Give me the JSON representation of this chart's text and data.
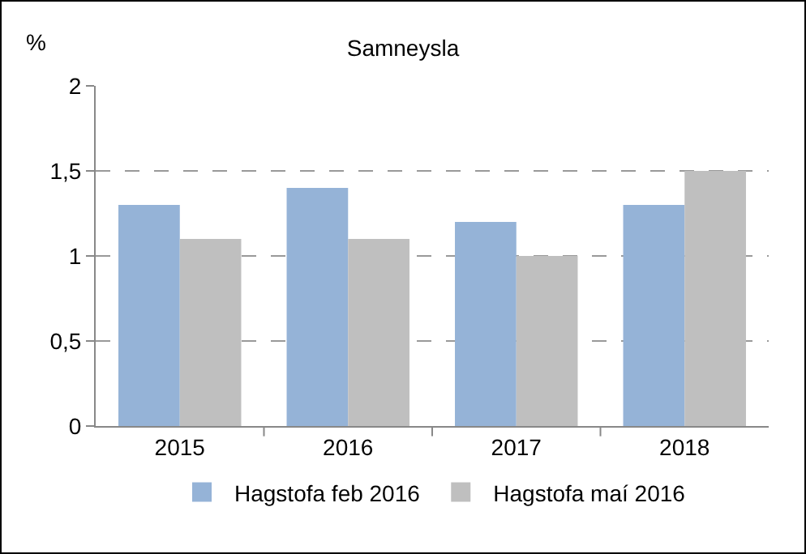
{
  "chart_data": {
    "type": "bar",
    "title": "Samneysla",
    "ylabel": "%",
    "categories": [
      "2015",
      "2016",
      "2017",
      "2018"
    ],
    "series": [
      {
        "name": "Hagstofa feb 2016",
        "color": "#95b3d7",
        "values": [
          1.3,
          1.4,
          1.2,
          1.3
        ]
      },
      {
        "name": "Hagstofa maí 2016",
        "color": "#bfbfbf",
        "values": [
          1.1,
          1.1,
          1.0,
          1.5
        ]
      }
    ],
    "ylim": [
      0,
      2
    ],
    "yticks": [
      0,
      {
        "value": 0.5,
        "label": "0,5"
      },
      1,
      {
        "value": 1.5,
        "label": "1,5"
      },
      2
    ],
    "grid": "y",
    "legend": "bottom"
  }
}
